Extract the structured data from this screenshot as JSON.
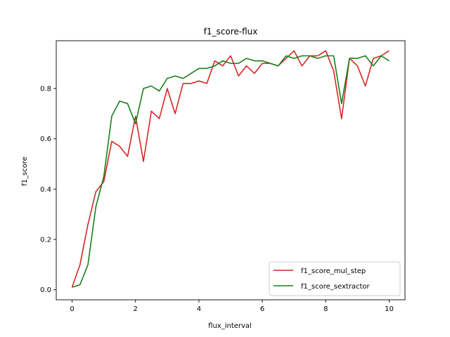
{
  "chart_data": {
    "type": "line",
    "title": "f1_score-flux",
    "xlabel": "flux_interval",
    "ylabel": "f1_score",
    "xlim": [
      -0.5,
      10.5
    ],
    "ylim": [
      -0.04,
      0.99
    ],
    "xticks": [
      0,
      2,
      4,
      6,
      8,
      10
    ],
    "yticks": [
      0.0,
      0.2,
      0.4,
      0.6,
      0.8
    ],
    "xtick_labels": [
      "0",
      "2",
      "4",
      "6",
      "8",
      "10"
    ],
    "ytick_labels": [
      "0.0",
      "0.2",
      "0.4",
      "0.6",
      "0.8"
    ],
    "grid": false,
    "legend_position": "lower-right",
    "x": [
      0,
      0.25,
      0.5,
      0.75,
      1.0,
      1.25,
      1.5,
      1.75,
      2.0,
      2.25,
      2.5,
      2.75,
      3.0,
      3.25,
      3.5,
      3.75,
      4.0,
      4.25,
      4.5,
      4.75,
      5.0,
      5.25,
      5.5,
      5.75,
      6.0,
      6.25,
      6.5,
      6.75,
      7.0,
      7.25,
      7.5,
      7.75,
      8.0,
      8.25,
      8.5,
      8.75,
      9.0,
      9.25,
      9.5,
      9.75,
      10.0
    ],
    "series": [
      {
        "name": "f1_score_mul_step",
        "color": "#d62728",
        "values": [
          0.01,
          0.1,
          0.26,
          0.39,
          0.43,
          0.59,
          0.57,
          0.53,
          0.69,
          0.51,
          0.71,
          0.68,
          0.8,
          0.7,
          0.82,
          0.82,
          0.83,
          0.82,
          0.91,
          0.89,
          0.93,
          0.85,
          0.89,
          0.86,
          0.9,
          0.9,
          0.89,
          0.92,
          0.95,
          0.89,
          0.93,
          0.93,
          0.95,
          0.87,
          0.68,
          0.92,
          0.89,
          0.81,
          0.92,
          0.93,
          0.95
        ]
      },
      {
        "name": "f1_score_sextractor",
        "color": "#1a7f1a",
        "values": [
          0.01,
          0.02,
          0.1,
          0.33,
          0.45,
          0.69,
          0.75,
          0.74,
          0.66,
          0.8,
          0.81,
          0.79,
          0.84,
          0.85,
          0.84,
          0.86,
          0.88,
          0.88,
          0.89,
          0.91,
          0.9,
          0.9,
          0.92,
          0.91,
          0.91,
          0.9,
          0.89,
          0.93,
          0.92,
          0.93,
          0.93,
          0.92,
          0.93,
          0.93,
          0.74,
          0.92,
          0.92,
          0.93,
          0.89,
          0.93,
          0.91
        ]
      }
    ]
  }
}
